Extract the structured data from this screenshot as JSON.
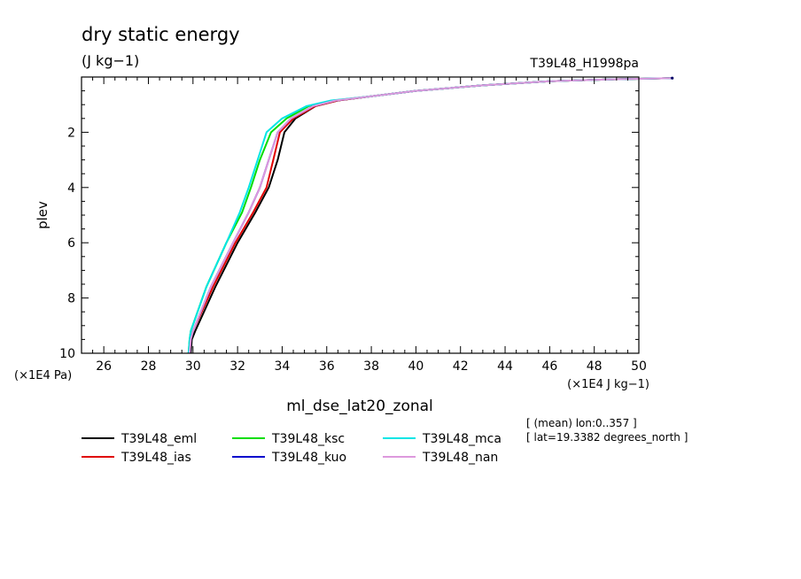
{
  "chart_data": {
    "type": "line",
    "title": "dry static energy",
    "units": "(J kg−1)",
    "run_label": "T39L48_H1998pa",
    "xlabel": "ml_dse_lat20_zonal",
    "x_unit_label": "(×1E4 J kg−1)",
    "ylabel": "plev",
    "y_unit_label": "(×1E4 Pa)",
    "xlim": [
      25,
      50
    ],
    "ylim": [
      10,
      0
    ],
    "x_ticks": [
      26,
      28,
      30,
      32,
      34,
      36,
      38,
      40,
      42,
      44,
      46,
      48,
      50
    ],
    "y_ticks": [
      2,
      4,
      6,
      8,
      10
    ],
    "info_lines": [
      "[ (mean) lon:0..357 ]",
      "[ lat=19.3382 degrees_north ]"
    ],
    "series": [
      {
        "name": "T39L48_eml",
        "color": "#000000",
        "points": [
          [
            29.9,
            10
          ],
          [
            29.95,
            9.5
          ],
          [
            30.1,
            9.2
          ],
          [
            31.0,
            7.6
          ],
          [
            32.0,
            6.0
          ],
          [
            32.8,
            4.9
          ],
          [
            33.4,
            4.0
          ],
          [
            33.8,
            3.0
          ],
          [
            34.1,
            2.0
          ],
          [
            34.6,
            1.5
          ],
          [
            35.5,
            1.05
          ],
          [
            36.5,
            0.85
          ],
          [
            38.0,
            0.7
          ],
          [
            40.0,
            0.5
          ],
          [
            43.0,
            0.3
          ],
          [
            46.0,
            0.15
          ],
          [
            49.0,
            0.08
          ],
          [
            51.5,
            0.04
          ]
        ]
      },
      {
        "name": "T39L48_ias",
        "color": "#e00000",
        "points": [
          [
            29.85,
            10
          ],
          [
            29.9,
            9.5
          ],
          [
            30.0,
            9.2
          ],
          [
            30.9,
            7.6
          ],
          [
            31.9,
            6.0
          ],
          [
            32.7,
            4.9
          ],
          [
            33.3,
            4.0
          ],
          [
            33.6,
            3.0
          ],
          [
            33.9,
            2.0
          ],
          [
            34.5,
            1.5
          ],
          [
            35.5,
            1.05
          ],
          [
            36.5,
            0.85
          ],
          [
            38.0,
            0.7
          ],
          [
            40.0,
            0.5
          ],
          [
            43.0,
            0.3
          ],
          [
            46.0,
            0.15
          ],
          [
            49.0,
            0.08
          ],
          [
            51.5,
            0.04
          ]
        ]
      },
      {
        "name": "T39L48_ksc",
        "color": "#00dd00",
        "points": [
          [
            29.8,
            10
          ],
          [
            29.85,
            9.5
          ],
          [
            29.9,
            9.2
          ],
          [
            30.6,
            7.6
          ],
          [
            31.5,
            6.0
          ],
          [
            32.2,
            4.9
          ],
          [
            32.6,
            4.0
          ],
          [
            33.0,
            3.0
          ],
          [
            33.5,
            2.0
          ],
          [
            34.2,
            1.5
          ],
          [
            35.2,
            1.05
          ],
          [
            36.3,
            0.85
          ],
          [
            38.0,
            0.7
          ],
          [
            40.0,
            0.5
          ],
          [
            43.0,
            0.3
          ],
          [
            46.0,
            0.15
          ],
          [
            49.0,
            0.08
          ],
          [
            51.5,
            0.04
          ]
        ]
      },
      {
        "name": "T39L48_kuo",
        "color": "#0000cc",
        "points": [
          [
            29.85,
            10
          ],
          [
            29.9,
            9.5
          ],
          [
            30.0,
            9.2
          ],
          [
            30.8,
            7.6
          ],
          [
            31.8,
            6.0
          ],
          [
            32.5,
            4.9
          ],
          [
            33.0,
            4.0
          ],
          [
            33.4,
            3.0
          ],
          [
            33.8,
            2.0
          ],
          [
            34.4,
            1.5
          ],
          [
            35.4,
            1.05
          ],
          [
            36.4,
            0.85
          ],
          [
            38.0,
            0.7
          ],
          [
            40.0,
            0.5
          ],
          [
            43.0,
            0.3
          ],
          [
            46.0,
            0.15
          ],
          [
            49.0,
            0.08
          ],
          [
            51.5,
            0.04
          ]
        ]
      },
      {
        "name": "T39L48_mca",
        "color": "#00e5e5",
        "points": [
          [
            29.8,
            10
          ],
          [
            29.85,
            9.5
          ],
          [
            29.9,
            9.2
          ],
          [
            30.6,
            7.6
          ],
          [
            31.5,
            6.0
          ],
          [
            32.1,
            4.9
          ],
          [
            32.5,
            4.0
          ],
          [
            32.9,
            3.0
          ],
          [
            33.3,
            2.0
          ],
          [
            34.0,
            1.5
          ],
          [
            35.1,
            1.05
          ],
          [
            36.2,
            0.85
          ],
          [
            38.0,
            0.7
          ],
          [
            40.0,
            0.5
          ],
          [
            43.0,
            0.3
          ],
          [
            46.0,
            0.15
          ],
          [
            49.0,
            0.08
          ],
          [
            51.5,
            0.04
          ]
        ]
      },
      {
        "name": "T39L48_nan",
        "color": "#dd99dd",
        "points": [
          [
            29.85,
            10
          ],
          [
            29.9,
            9.5
          ],
          [
            30.0,
            9.2
          ],
          [
            30.8,
            7.6
          ],
          [
            31.8,
            6.0
          ],
          [
            32.5,
            4.9
          ],
          [
            33.0,
            4.0
          ],
          [
            33.4,
            3.0
          ],
          [
            33.8,
            2.0
          ],
          [
            34.4,
            1.5
          ],
          [
            35.4,
            1.05
          ],
          [
            36.4,
            0.85
          ],
          [
            38.0,
            0.7
          ],
          [
            40.0,
            0.5
          ],
          [
            43.0,
            0.3
          ],
          [
            46.0,
            0.15
          ],
          [
            49.0,
            0.08
          ],
          [
            51.5,
            0.04
          ]
        ]
      }
    ]
  }
}
